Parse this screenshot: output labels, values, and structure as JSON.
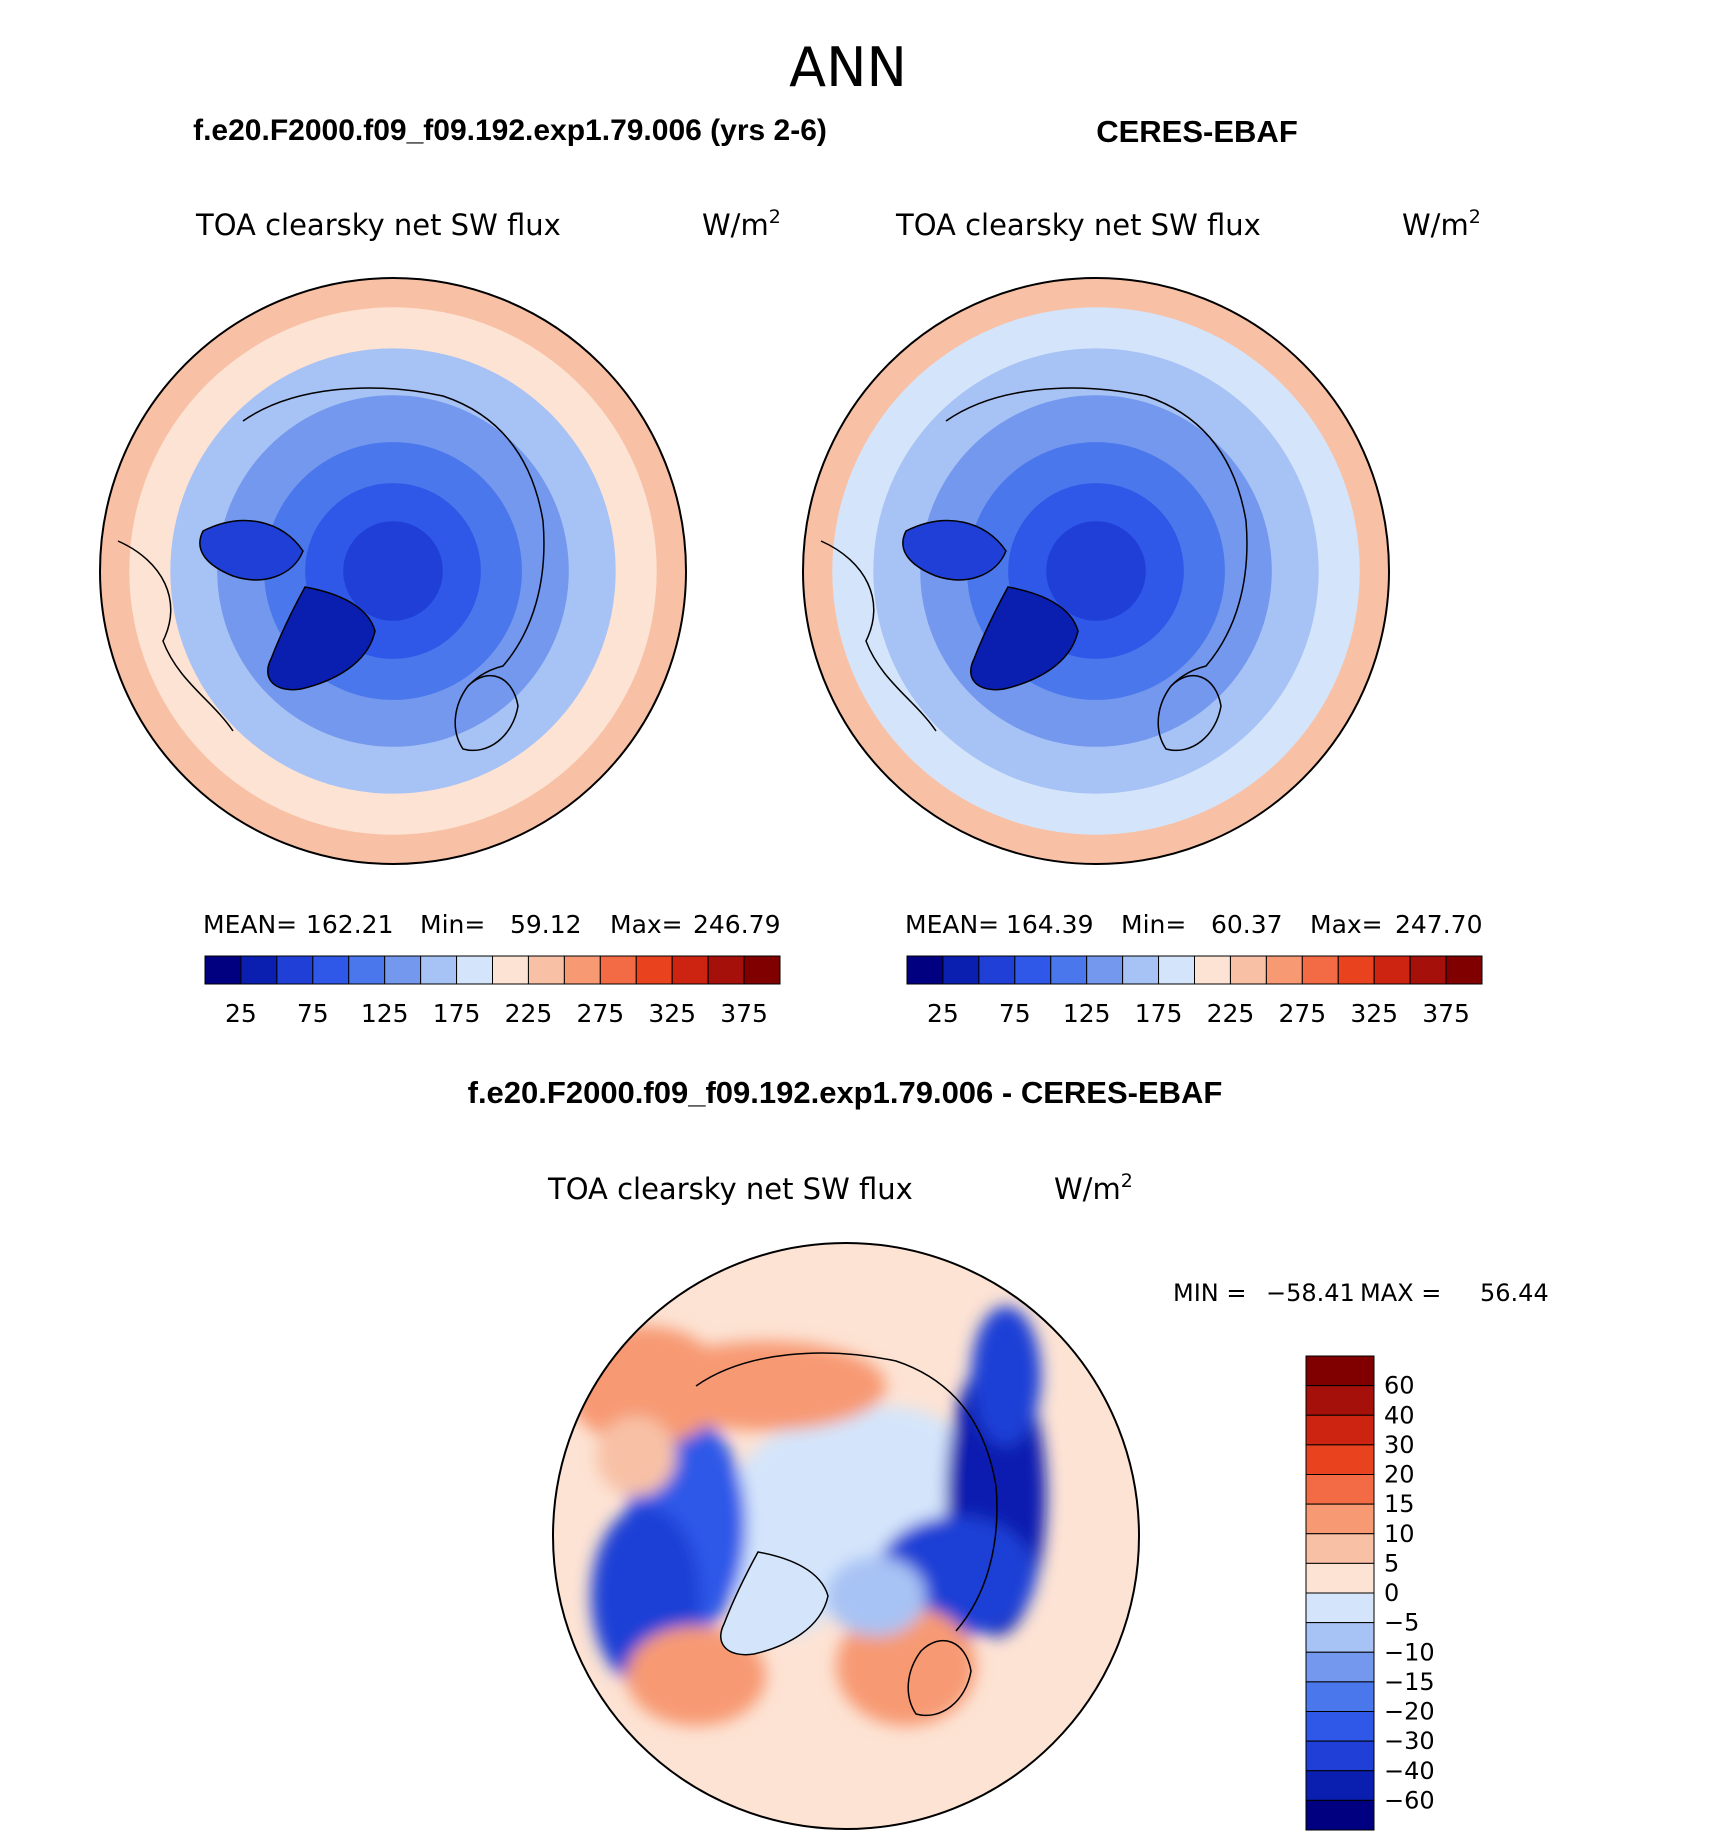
{
  "page": {
    "title": "ANN",
    "model_label": "f.e20.F2000.f09_f09.192.exp1.79.006 (yrs 2-6)",
    "obs_label": "CERES-EBAF",
    "diff_label": "f.e20.F2000.f09_f09.192.exp1.79.006 - CERES-EBAF"
  },
  "chart_data": [
    {
      "type": "heatmap",
      "projection": "north-polar-stereographic",
      "title": "TOA clearsky net SW flux",
      "units": "W/m",
      "units_sup": "2",
      "stats": {
        "mean_label": "MEAN=",
        "mean": "162.21",
        "min_label": "Min=",
        "min": "59.12",
        "max_label": "Max=",
        "max": "246.79"
      },
      "levels": [
        25,
        50,
        75,
        100,
        125,
        150,
        175,
        200,
        225,
        250,
        275,
        300,
        325,
        350,
        375
      ],
      "tick_labels": [
        "25",
        "75",
        "125",
        "175",
        "225",
        "275",
        "325",
        "375"
      ],
      "colors": [
        "#000080",
        "#0a1fb0",
        "#1f3fd6",
        "#2f58e8",
        "#4a78ec",
        "#7398ee",
        "#a7c2f4",
        "#d4e5fb",
        "#fde3d4",
        "#f8c1a6",
        "#f79a73",
        "#f36b45",
        "#e8421f",
        "#cc2410",
        "#a5110a",
        "#800000"
      ],
      "bands_radius_frac": [
        0.17,
        0.3,
        0.44,
        0.6,
        0.76,
        0.9,
        1.0
      ],
      "bands_color_index": [
        2,
        3,
        4,
        5,
        6,
        8,
        9
      ]
    },
    {
      "type": "heatmap",
      "projection": "north-polar-stereographic",
      "title": "TOA clearsky net SW flux",
      "units": "W/m",
      "units_sup": "2",
      "stats": {
        "mean_label": "MEAN=",
        "mean": "164.39",
        "min_label": "Min=",
        "min": "60.37",
        "max_label": "Max=",
        "max": "247.70"
      },
      "levels": [
        25,
        50,
        75,
        100,
        125,
        150,
        175,
        200,
        225,
        250,
        275,
        300,
        325,
        350,
        375
      ],
      "tick_labels": [
        "25",
        "75",
        "125",
        "175",
        "225",
        "275",
        "325",
        "375"
      ],
      "colors": [
        "#000080",
        "#0a1fb0",
        "#1f3fd6",
        "#2f58e8",
        "#4a78ec",
        "#7398ee",
        "#a7c2f4",
        "#d4e5fb",
        "#fde3d4",
        "#f8c1a6",
        "#f79a73",
        "#f36b45",
        "#e8421f",
        "#cc2410",
        "#a5110a",
        "#800000"
      ],
      "bands_radius_frac": [
        0.17,
        0.3,
        0.44,
        0.6,
        0.76,
        0.9,
        1.0
      ],
      "bands_color_index": [
        2,
        3,
        4,
        5,
        6,
        7,
        9
      ]
    },
    {
      "type": "heatmap",
      "projection": "north-polar-stereographic",
      "title": "TOA clearsky net SW flux",
      "units": "W/m",
      "units_sup": "2",
      "stats": {
        "min_label": "MIN =",
        "min": "−58.41",
        "max_label": "MAX =",
        "max": "56.44"
      },
      "levels": [
        60,
        40,
        30,
        20,
        15,
        10,
        5,
        0,
        -5,
        -10,
        -15,
        -20,
        -30,
        -40,
        -60
      ],
      "tick_labels": [
        "60",
        "40",
        "30",
        "20",
        "15",
        "10",
        "5",
        "0",
        "−5",
        "−10",
        "−15",
        "−20",
        "−30",
        "−40",
        "−60"
      ],
      "colors": [
        "#800000",
        "#a5110a",
        "#cc2410",
        "#e8421f",
        "#f36b45",
        "#f79a73",
        "#f8c1a6",
        "#fde3d4",
        "#d4e5fb",
        "#a7c2f4",
        "#7398ee",
        "#4a78ec",
        "#2f58e8",
        "#1f3fd6",
        "#0a1fb0",
        "#000080"
      ]
    }
  ]
}
